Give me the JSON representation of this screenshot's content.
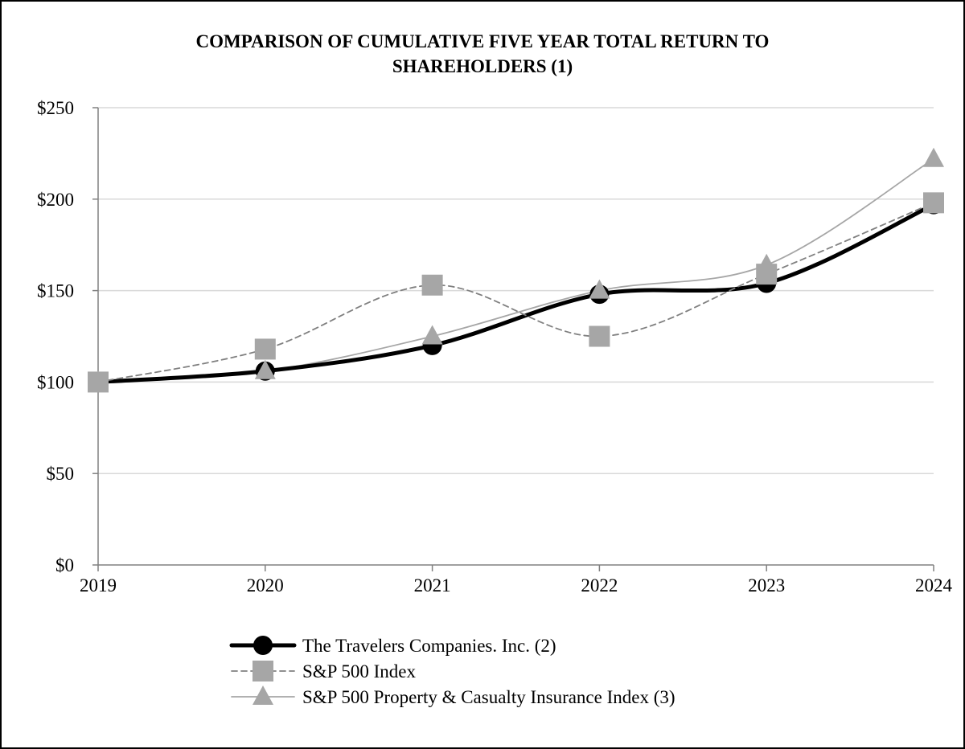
{
  "chart_data": {
    "type": "line",
    "title_line1": "COMPARISON OF CUMULATIVE FIVE YEAR TOTAL RETURN TO",
    "title_line2": "SHAREHOLDERS (1)",
    "xlabel": "",
    "ylabel": "",
    "x": [
      "2019",
      "2020",
      "2021",
      "2022",
      "2023",
      "2024"
    ],
    "ylim": [
      0,
      250
    ],
    "yticks": [
      0,
      50,
      100,
      150,
      200,
      250
    ],
    "ytick_labels": [
      "$0",
      "$50",
      "$100",
      "$150",
      "$200",
      "$250"
    ],
    "grid": true,
    "legend_position": "bottom",
    "series": [
      {
        "name": "The Travelers Companies. Inc. (2)",
        "values": [
          100,
          106,
          120,
          148,
          154,
          197
        ],
        "marker": "circle",
        "line_style": "solid-thick",
        "color": "#000000"
      },
      {
        "name": "S&P 500 Index",
        "values": [
          100,
          118,
          153,
          125,
          159,
          198
        ],
        "marker": "square",
        "line_style": "dashed",
        "color": "#a6a6a6",
        "line_color": "#808080"
      },
      {
        "name": "S&P 500 Property & Casualty Insurance Index (3)",
        "values": [
          100,
          106,
          125,
          150,
          164,
          222
        ],
        "marker": "triangle",
        "line_style": "solid-thin",
        "color": "#a6a6a6",
        "line_color": "#a6a6a6"
      }
    ]
  }
}
